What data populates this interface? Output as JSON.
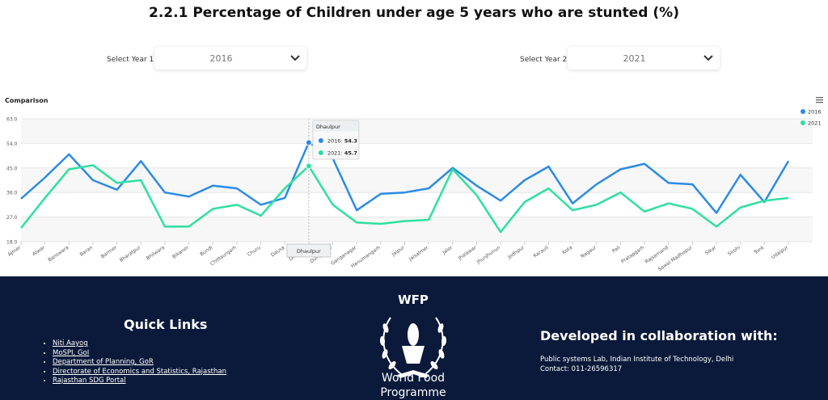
{
  "page_title": "2.2.1 Percentage of Children under age 5 years who are stunted (%)",
  "selectors": [
    {
      "label": "Select Year 1:"
    },
    {
      "label": "Select Year 2:"
    }
  ],
  "chart_data": {
    "type": "line",
    "title": "Comparison",
    "categories": [
      "Ajmer",
      "Alwar",
      "Banswara",
      "Baran",
      "Barmer",
      "Bharatpur",
      "Bhilwara",
      "Bikaner",
      "Bundi",
      "Chittaurgarh",
      "Churu",
      "Dausa",
      "Dhaulpur",
      "Dungarpur",
      "Ganganagar",
      "Hanumangarh",
      "Jaipur",
      "Jaisalmer",
      "Jalor",
      "Jhalawar",
      "Jhunjhunun",
      "Jodhpur",
      "Karauli",
      "Kota",
      "Nagaur",
      "Pali",
      "Pratapgarh",
      "Rajsamand",
      "Sawai Madhopur",
      "Sikar",
      "Sirohi",
      "Tonk",
      "Udaipur"
    ],
    "series": [
      {
        "name": "2016",
        "color": "#2b8be6",
        "values": [
          33.7,
          41.5,
          50,
          40.5,
          37,
          47.5,
          36,
          34.5,
          38.5,
          37.5,
          31.5,
          34,
          54.3,
          48.5,
          29.5,
          35.5,
          36,
          37.5,
          45,
          38.5,
          33,
          40.5,
          45.5,
          32,
          39,
          44.5,
          46.5,
          39.5,
          39,
          28.5,
          42.5,
          32.5,
          47.5
        ]
      },
      {
        "name": "2021",
        "color": "#2ee0a0",
        "values": [
          23,
          34,
          44.5,
          46,
          39.5,
          40.5,
          23.5,
          23.5,
          30,
          31.5,
          27.5,
          37.5,
          45.7,
          31.5,
          25,
          24.5,
          25.5,
          26,
          44.5,
          35,
          21.5,
          32.5,
          37.5,
          29.5,
          31.5,
          36,
          29,
          32,
          30,
          23.5,
          30.5,
          33,
          34
        ]
      }
    ],
    "ylim": [
      18,
      63
    ],
    "yticks": [
      {
        "value": 18,
        "label": "18.0"
      },
      {
        "value": 27,
        "label": "27.0"
      },
      {
        "value": 36,
        "label": "36.0"
      },
      {
        "value": 45,
        "label": "45.0"
      },
      {
        "value": 54,
        "label": "54.0"
      },
      {
        "value": 63,
        "label": "63.0"
      }
    ],
    "grid": true,
    "legend": "top-right",
    "tooltip": {
      "index": 12,
      "labels": [
        "2016:",
        "2021:"
      ]
    }
  },
  "footer": {
    "quick_links": {
      "title": "Quick Links",
      "items": [
        "Niti Aayog",
        "MoSPI, GoI",
        "Department of Planning, GoR",
        "Directorate of Economics and Statistics, Rajasthan",
        "Rajasthan SDG Portal"
      ]
    },
    "logo": {
      "acronym": "WFP",
      "name_line1": "World Food",
      "name_line2": "Programme"
    },
    "collaboration": {
      "title": "Developed in collaboration with:",
      "line1": "Public systems Lab, Indian Institute of Technology, Delhi",
      "line2": "Contact: 011-26596317"
    }
  }
}
